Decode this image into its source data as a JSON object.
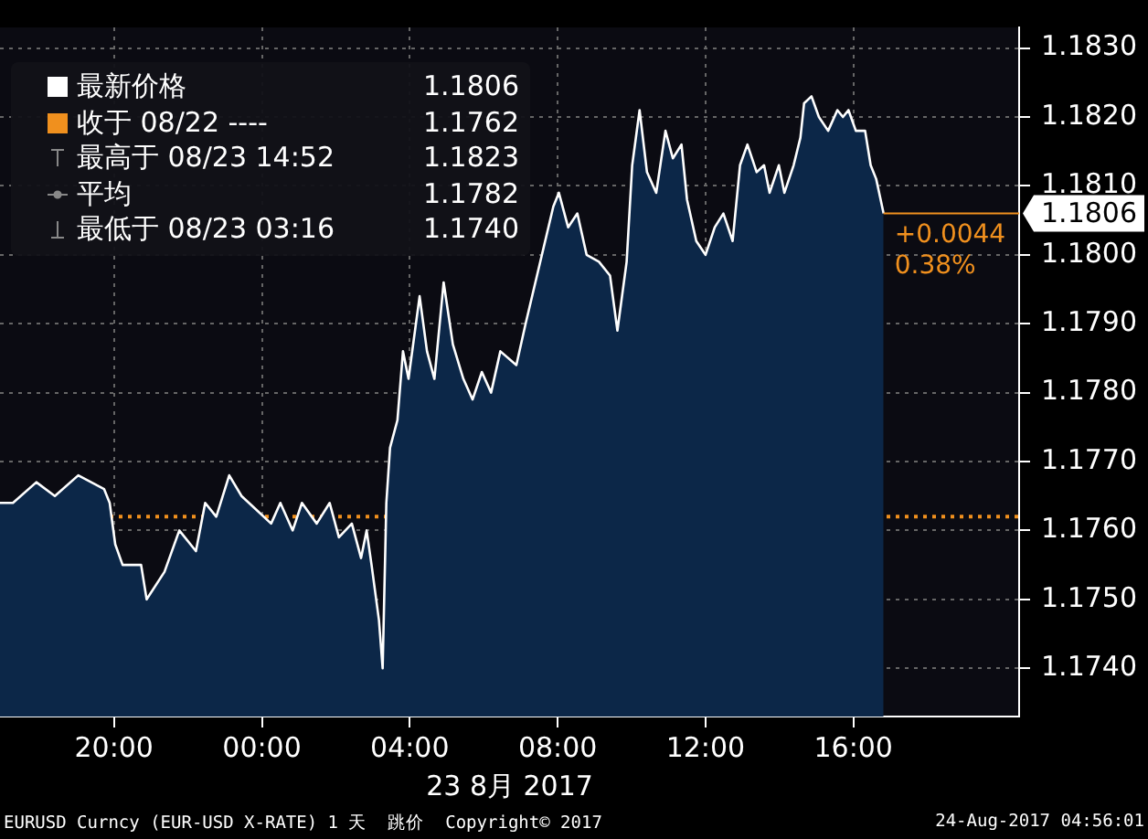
{
  "chart_data": {
    "type": "area",
    "xlabel": "23 8月 2017",
    "x": [
      "2017-08-22T16:55",
      "2017-08-22T17:16",
      "2017-08-22T17:54",
      "2017-08-22T18:24",
      "2017-08-22T19:02",
      "2017-08-22T19:44",
      "2017-08-22T19:53",
      "2017-08-22T20:02",
      "2017-08-22T20:14",
      "2017-08-22T20:44",
      "2017-08-22T20:53",
      "2017-08-22T21:22",
      "2017-08-22T21:46",
      "2017-08-22T22:13",
      "2017-08-22T22:28",
      "2017-08-22T22:46",
      "2017-08-22T23:07",
      "2017-08-22T23:27",
      "2017-08-22T23:51",
      "2017-08-23T00:15",
      "2017-08-23T00:30",
      "2017-08-23T00:50",
      "2017-08-23T01:05",
      "2017-08-23T01:29",
      "2017-08-23T01:50",
      "2017-08-23T02:05",
      "2017-08-23T02:26",
      "2017-08-23T02:41",
      "2017-08-23T02:50",
      "2017-08-23T02:58",
      "2017-08-23T03:10",
      "2017-08-23T03:16",
      "2017-08-23T03:22",
      "2017-08-23T03:28",
      "2017-08-23T03:40",
      "2017-08-23T03:49",
      "2017-08-23T03:58",
      "2017-08-23T04:16",
      "2017-08-23T04:28",
      "2017-08-23T04:40",
      "2017-08-23T04:55",
      "2017-08-23T05:10",
      "2017-08-23T05:27",
      "2017-08-23T05:42",
      "2017-08-23T05:57",
      "2017-08-23T06:12",
      "2017-08-23T06:27",
      "2017-08-23T06:53",
      "2017-08-23T07:08",
      "2017-08-23T07:53",
      "2017-08-23T08:02",
      "2017-08-23T08:17",
      "2017-08-23T08:32",
      "2017-08-23T08:47",
      "2017-08-23T09:07",
      "2017-08-23T09:25",
      "2017-08-23T09:37",
      "2017-08-23T09:52",
      "2017-08-23T10:01",
      "2017-08-23T10:13",
      "2017-08-23T10:25",
      "2017-08-23T10:40",
      "2017-08-23T10:55",
      "2017-08-23T11:07",
      "2017-08-23T11:21",
      "2017-08-23T11:30",
      "2017-08-23T11:45",
      "2017-08-23T12:00",
      "2017-08-23T12:15",
      "2017-08-23T12:29",
      "2017-08-23T12:44",
      "2017-08-23T12:56",
      "2017-08-23T13:08",
      "2017-08-23T13:23",
      "2017-08-23T13:35",
      "2017-08-23T13:44",
      "2017-08-23T13:59",
      "2017-08-23T14:08",
      "2017-08-23T14:23",
      "2017-08-23T14:34",
      "2017-08-23T14:40",
      "2017-08-23T14:52",
      "2017-08-23T15:04",
      "2017-08-23T15:19",
      "2017-08-23T15:34",
      "2017-08-23T15:43",
      "2017-08-23T15:52",
      "2017-08-23T16:04",
      "2017-08-23T16:19",
      "2017-08-23T16:28",
      "2017-08-23T16:37",
      "2017-08-23T16:49"
    ],
    "series": [
      {
        "name": "最新价格",
        "color": "#ffffff",
        "values": [
          1.1764,
          1.1764,
          1.1767,
          1.1765,
          1.1768,
          1.1766,
          1.1764,
          1.1758,
          1.1755,
          1.1755,
          1.175,
          1.1754,
          1.176,
          1.1757,
          1.1764,
          1.1762,
          1.1768,
          1.1765,
          1.1763,
          1.1761,
          1.1764,
          1.176,
          1.1764,
          1.1761,
          1.1764,
          1.1759,
          1.1761,
          1.1756,
          1.176,
          1.1755,
          1.1747,
          1.174,
          1.1764,
          1.1772,
          1.1776,
          1.1786,
          1.1782,
          1.1794,
          1.1786,
          1.1782,
          1.1796,
          1.1787,
          1.1782,
          1.1779,
          1.1783,
          1.178,
          1.1786,
          1.1784,
          1.179,
          1.1807,
          1.1809,
          1.1804,
          1.1806,
          1.18,
          1.1799,
          1.1797,
          1.1789,
          1.1799,
          1.1813,
          1.1821,
          1.1812,
          1.1809,
          1.1818,
          1.1814,
          1.1816,
          1.1808,
          1.1802,
          1.18,
          1.1804,
          1.1806,
          1.1802,
          1.1813,
          1.1816,
          1.1812,
          1.1813,
          1.1809,
          1.1813,
          1.1809,
          1.1813,
          1.1817,
          1.1822,
          1.1823,
          1.182,
          1.1818,
          1.1821,
          1.182,
          1.1821,
          1.1818,
          1.1818,
          1.1813,
          1.1811,
          1.1806
        ]
      }
    ],
    "xlim": [
      "2017-08-22T16:55",
      "2017-08-23T20:29"
    ],
    "xticks": [
      {
        "value": "2017-08-22T20:00",
        "label": "20:00"
      },
      {
        "value": "2017-08-23T00:00",
        "label": "00:00"
      },
      {
        "value": "2017-08-23T04:00",
        "label": "04:00"
      },
      {
        "value": "2017-08-23T08:00",
        "label": "08:00"
      },
      {
        "value": "2017-08-23T12:00",
        "label": "12:00"
      },
      {
        "value": "2017-08-23T16:00",
        "label": "16:00"
      }
    ],
    "ylim": [
      1.1733,
      1.1833
    ],
    "yticks": [
      {
        "value": 1.174,
        "label": "1.1740"
      },
      {
        "value": 1.175,
        "label": "1.1750"
      },
      {
        "value": 1.176,
        "label": "1.1760"
      },
      {
        "value": 1.177,
        "label": "1.1770"
      },
      {
        "value": 1.178,
        "label": "1.1780"
      },
      {
        "value": 1.179,
        "label": "1.1790"
      },
      {
        "value": 1.18,
        "label": "1.1800"
      },
      {
        "value": 1.181,
        "label": "1.1810"
      },
      {
        "value": 1.182,
        "label": "1.1820"
      },
      {
        "value": 1.183,
        "label": "1.1830"
      }
    ],
    "ref_lines": [
      {
        "axis": "y",
        "value": 1.1762,
        "label": "收于 08/22 ---- 1.1762",
        "color": "#f0901e",
        "line_style": "dotted"
      }
    ],
    "annotations": [
      "1.1806",
      "+0.0044",
      "0.38%",
      "最高于 08/23 14:52 1.1823",
      "平均 1.1782",
      "最低于 08/23 03:16 1.1740",
      "EURUSD Curncy (EUR-USD X-RATE) 1 天  跳价  Copyright© 2017",
      "24-Aug-2017 04:56:01"
    ],
    "grid": true,
    "legend": "top left",
    "marker": "none",
    "line_style": "solid"
  }
}
